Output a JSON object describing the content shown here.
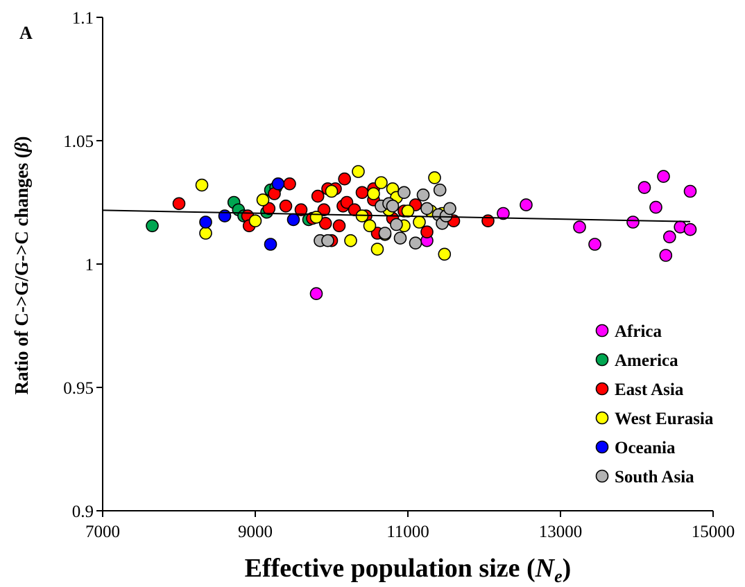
{
  "chart_data": {
    "type": "scatter",
    "panel_label": "A",
    "xlabel_text": "Effective population size (",
    "xlabel_symbol": "N",
    "xlabel_sub": "e",
    "xlabel_close": ")",
    "ylabel_text": "Ratio of C->G/G->C changes (",
    "ylabel_symbol": "β",
    "ylabel_close": ")",
    "xlim": [
      7000,
      15000
    ],
    "ylim": [
      0.9,
      1.1
    ],
    "x_ticks": [
      "7000",
      "9000",
      "11000",
      "13000",
      "15000"
    ],
    "y_ticks": [
      "0.9",
      "0.95",
      "1",
      "1.05",
      "1.1"
    ],
    "trendline": {
      "x": [
        7000,
        14700
      ],
      "y": [
        1.0218,
        1.0172
      ]
    },
    "series": [
      {
        "name": "Africa",
        "color": "#ff00ff",
        "points": [
          [
            9800,
            0.988
          ],
          [
            11250,
            1.0095
          ],
          [
            12250,
            1.0205
          ],
          [
            12550,
            1.024
          ],
          [
            13250,
            1.015
          ],
          [
            13450,
            1.008
          ],
          [
            13950,
            1.017
          ],
          [
            14100,
            1.031
          ],
          [
            14250,
            1.023
          ],
          [
            14350,
            1.0355
          ],
          [
            14380,
            1.0035
          ],
          [
            14430,
            1.011
          ],
          [
            14570,
            1.015
          ],
          [
            14700,
            1.0295
          ],
          [
            14700,
            1.014
          ]
        ]
      },
      {
        "name": "America",
        "color": "#00a651",
        "points": [
          [
            7650,
            1.0155
          ],
          [
            8720,
            1.025
          ],
          [
            8780,
            1.022
          ],
          [
            8850,
            1.0195
          ],
          [
            9150,
            1.021
          ],
          [
            9200,
            1.03
          ],
          [
            9270,
            1.031
          ],
          [
            9700,
            1.018
          ]
        ]
      },
      {
        "name": "East Asia",
        "color": "#ff0000",
        "points": [
          [
            8000,
            1.0245
          ],
          [
            8900,
            1.0195
          ],
          [
            8920,
            1.0155
          ],
          [
            9180,
            1.0225
          ],
          [
            9250,
            1.0285
          ],
          [
            9400,
            1.0235
          ],
          [
            9450,
            1.0325
          ],
          [
            9600,
            1.022
          ],
          [
            9750,
            1.0185
          ],
          [
            9820,
            1.0275
          ],
          [
            9900,
            1.022
          ],
          [
            9920,
            1.0165
          ],
          [
            9950,
            1.0305
          ],
          [
            10000,
            1.0095
          ],
          [
            10050,
            1.0305
          ],
          [
            10100,
            1.0155
          ],
          [
            10150,
            1.0235
          ],
          [
            10200,
            1.025
          ],
          [
            10170,
            1.0345
          ],
          [
            10300,
            1.022
          ],
          [
            10400,
            1.029
          ],
          [
            10450,
            1.0195
          ],
          [
            10550,
            1.026
          ],
          [
            10550,
            1.0305
          ],
          [
            10600,
            1.0125
          ],
          [
            10800,
            1.0185
          ],
          [
            10950,
            1.0215
          ],
          [
            11100,
            1.024
          ],
          [
            11250,
            1.013
          ],
          [
            11600,
            1.0175
          ],
          [
            12050,
            1.0175
          ]
        ]
      },
      {
        "name": "West Eurasia",
        "color": "#ffff00",
        "points": [
          [
            8300,
            1.032
          ],
          [
            8350,
            1.0125
          ],
          [
            9000,
            1.0175
          ],
          [
            9100,
            1.026
          ],
          [
            9800,
            1.019
          ],
          [
            10000,
            1.0295
          ],
          [
            10250,
            1.0095
          ],
          [
            10350,
            1.0375
          ],
          [
            10400,
            1.0195
          ],
          [
            10500,
            1.0155
          ],
          [
            10550,
            1.0285
          ],
          [
            10600,
            1.006
          ],
          [
            10650,
            1.033
          ],
          [
            10700,
            1.012
          ],
          [
            10750,
            1.022
          ],
          [
            10800,
            1.0305
          ],
          [
            10850,
            1.027
          ],
          [
            10950,
            1.0155
          ],
          [
            11000,
            1.0215
          ],
          [
            11150,
            1.017
          ],
          [
            11300,
            1.0215
          ],
          [
            11350,
            1.035
          ],
          [
            11450,
            1.0205
          ],
          [
            11480,
            1.004
          ]
        ]
      },
      {
        "name": "Oceania",
        "color": "#0000ff",
        "points": [
          [
            8350,
            1.017
          ],
          [
            8600,
            1.0195
          ],
          [
            9200,
            1.008
          ],
          [
            9300,
            1.0325
          ],
          [
            9500,
            1.018
          ]
        ]
      },
      {
        "name": "South Asia",
        "color": "#b3b3b3",
        "points": [
          [
            9850,
            1.0095
          ],
          [
            9950,
            1.0095
          ],
          [
            10650,
            1.0235
          ],
          [
            10700,
            1.0125
          ],
          [
            10750,
            1.0245
          ],
          [
            10800,
            1.0235
          ],
          [
            10850,
            1.016
          ],
          [
            10900,
            1.0105
          ],
          [
            10950,
            1.029
          ],
          [
            11100,
            1.0085
          ],
          [
            11200,
            1.028
          ],
          [
            11250,
            1.0225
          ],
          [
            11400,
            1.02
          ],
          [
            11420,
            1.03
          ],
          [
            11450,
            1.0165
          ],
          [
            11500,
            1.0195
          ],
          [
            11550,
            1.0225
          ]
        ]
      }
    ],
    "legend_position": "bottom-right",
    "grid": false
  }
}
